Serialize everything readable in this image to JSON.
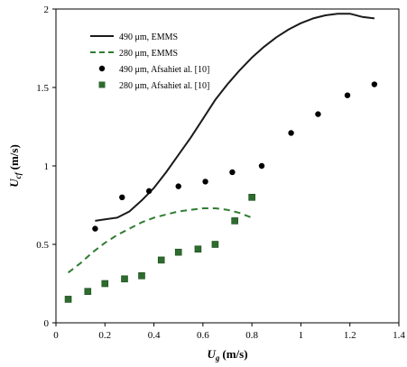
{
  "chart_data": {
    "type": "scatter",
    "xlabel": "U",
    "xlabel_sub": "g",
    "xlabel_unit": "(m/s)",
    "ylabel": "U",
    "ylabel_sub": "cf",
    "ylabel_unit": "(m/s)",
    "xlim": [
      0,
      1.4
    ],
    "ylim": [
      0,
      2
    ],
    "x_ticks": [
      "0",
      "0.2",
      "0.4",
      "0.6",
      "0.8",
      "1",
      "1.2",
      "1.4"
    ],
    "y_ticks": [
      "0",
      "0.5",
      "1",
      "1.5",
      "2"
    ],
    "grid": false,
    "legend_position": "top-left",
    "series": [
      {
        "name": "490 μm, EMMS",
        "style": "line",
        "color": "#1a1a1a",
        "x": [
          0.16,
          0.2,
          0.25,
          0.3,
          0.35,
          0.4,
          0.45,
          0.5,
          0.55,
          0.6,
          0.65,
          0.7,
          0.75,
          0.8,
          0.85,
          0.9,
          0.95,
          1.0,
          1.05,
          1.1,
          1.15,
          1.2,
          1.25,
          1.3
        ],
        "y": [
          0.65,
          0.66,
          0.67,
          0.71,
          0.78,
          0.86,
          0.96,
          1.07,
          1.18,
          1.3,
          1.42,
          1.52,
          1.61,
          1.69,
          1.76,
          1.82,
          1.87,
          1.91,
          1.94,
          1.96,
          1.97,
          1.97,
          1.95,
          1.94
        ]
      },
      {
        "name": "280 μm, EMMS",
        "style": "dashed",
        "color": "#2e7d32",
        "x": [
          0.05,
          0.1,
          0.15,
          0.2,
          0.25,
          0.3,
          0.35,
          0.4,
          0.45,
          0.5,
          0.55,
          0.6,
          0.65,
          0.7,
          0.75,
          0.8
        ],
        "y": [
          0.32,
          0.38,
          0.45,
          0.51,
          0.56,
          0.6,
          0.64,
          0.67,
          0.69,
          0.71,
          0.72,
          0.73,
          0.73,
          0.72,
          0.7,
          0.67
        ]
      },
      {
        "name": "490 μm, Afsahiet al. [10]",
        "style": "marker-circle",
        "color": "#000000",
        "x": [
          0.16,
          0.27,
          0.38,
          0.5,
          0.61,
          0.72,
          0.84,
          0.96,
          1.07,
          1.19,
          1.3
        ],
        "y": [
          0.6,
          0.8,
          0.84,
          0.87,
          0.9,
          0.96,
          1.0,
          1.21,
          1.33,
          1.45,
          1.52
        ]
      },
      {
        "name": "280 μm, Afsahiet al. [10]",
        "style": "marker-square",
        "color": "#2e6b2e",
        "x": [
          0.05,
          0.13,
          0.2,
          0.28,
          0.35,
          0.43,
          0.5,
          0.58,
          0.65,
          0.73,
          0.8
        ],
        "y": [
          0.15,
          0.2,
          0.25,
          0.28,
          0.3,
          0.4,
          0.45,
          0.47,
          0.5,
          0.65,
          0.8
        ]
      }
    ]
  }
}
